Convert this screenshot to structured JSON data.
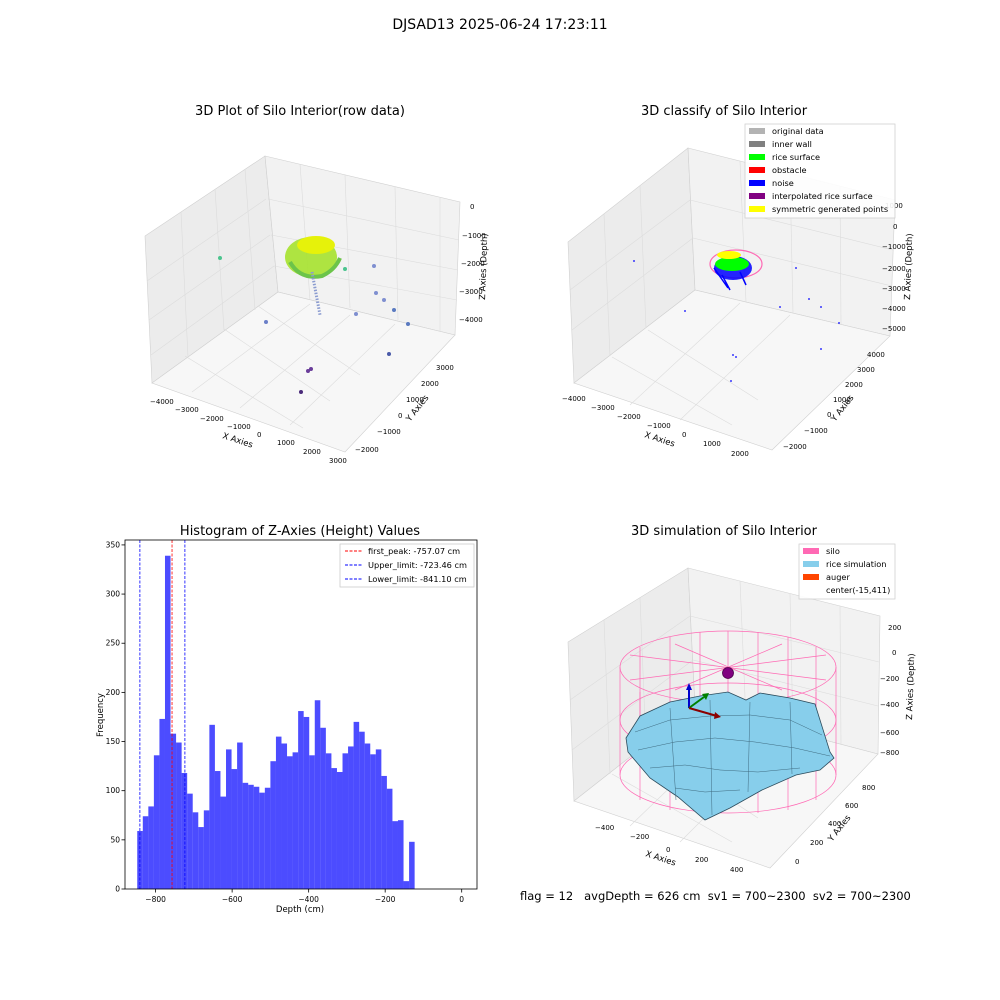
{
  "suptitle": "DJSAD13 2025-06-24 17:23:11",
  "footer": "flag = 12   avgDepth = 626 cm  sv1 = 700~2300  sv2 = 700~2300",
  "colors": {
    "histogram": "#0000ff",
    "first_peak": "#ff0000",
    "limits": "#0000ff",
    "silo": "#ff69b4",
    "rice_simulation": "#87ceeb",
    "auger": "#ff4500",
    "original_data": "#b3b3b3",
    "inner_wall": "#808080",
    "rice_surface": "#00ff00",
    "obstacle": "#ff0000",
    "noise": "#0000ff",
    "interpolated_rice_surface": "#800080",
    "symmetric_generated_points": "#ffff00"
  },
  "panel1": {
    "title": "3D Plot of Silo Interior(row data)",
    "xlabel": "X Axies",
    "ylabel": "Y Axies",
    "zlabel": "Z Axies (Depth)",
    "xticks": [
      "−4000",
      "−3000",
      "−2000",
      "−1000",
      "0",
      "1000",
      "2000",
      "3000"
    ],
    "yticks": [
      "−2000",
      "−1000",
      "0",
      "1000",
      "2000",
      "3000"
    ],
    "zticks": [
      "−4000",
      "−3000",
      "−2000",
      "−1000",
      "0"
    ]
  },
  "panel2": {
    "title": "3D classify of Silo Interior",
    "xlabel": "X Axies",
    "ylabel": "Y Axies",
    "zlabel": "Z Axies (Depth)",
    "xticks": [
      "−4000",
      "−3000",
      "−2000",
      "−1000",
      "0",
      "1000",
      "2000"
    ],
    "yticks": [
      "−2000",
      "−1000",
      "0",
      "1000",
      "2000",
      "3000",
      "4000"
    ],
    "zticks": [
      "−5000",
      "−4000",
      "−3000",
      "−2000",
      "−1000",
      "0",
      "1000"
    ],
    "legend": [
      "original data",
      "inner wall",
      "rice surface",
      "obstacle",
      "noise",
      "interpolated rice surface",
      "symmetric generated points"
    ]
  },
  "panel3": {
    "title": "3D simulation of Silo Interior",
    "xlabel": "X Axies",
    "ylabel": "Y Axies",
    "zlabel": "Z Axies (Depth)",
    "xticks": [
      "−400",
      "−200",
      "0",
      "200",
      "400"
    ],
    "yticks": [
      "0",
      "200",
      "400",
      "600",
      "800"
    ],
    "zticks": [
      "−800",
      "−600",
      "−400",
      "−200",
      "0",
      "200"
    ],
    "legend": [
      "silo",
      "rice simulation",
      "auger",
      "center(-15,411)"
    ]
  },
  "chart_data": {
    "type": "bar",
    "title": "Histogram of Z-Axies (Height) Values",
    "xlabel": "Depth (cm)",
    "ylabel": "Frequency",
    "xlim": [
      -880,
      40
    ],
    "ylim": [
      0,
      355
    ],
    "bin_start": -848,
    "bin_width": 14.5,
    "values": [
      59,
      74,
      84,
      136,
      173,
      339,
      158,
      149,
      118,
      97,
      78,
      63,
      80,
      167,
      120,
      94,
      142,
      122,
      149,
      108,
      106,
      104,
      98,
      103,
      130,
      155,
      148,
      135,
      139,
      181,
      175,
      136,
      192,
      164,
      138,
      123,
      119,
      138,
      145,
      170,
      160,
      148,
      137,
      142,
      115,
      102,
      69,
      70,
      8,
      48
    ],
    "xticks": [
      -800,
      -600,
      -400,
      -200,
      0
    ],
    "xtick_labels": [
      "−800",
      "−600",
      "−400",
      "−200",
      "0"
    ],
    "yticks": [
      0,
      50,
      100,
      150,
      200,
      250,
      300,
      350
    ],
    "lines": [
      {
        "name": "first_peak: -757.07 cm",
        "x": -757.07,
        "color": "#ff0000"
      },
      {
        "name": "Upper_limit: -723.46 cm",
        "x": -723.46,
        "color": "#0000ff"
      },
      {
        "name": "Lower_limit: -841.10 cm",
        "x": -841.1,
        "color": "#0000ff"
      }
    ],
    "legend_position": "top-right",
    "grid": false
  }
}
